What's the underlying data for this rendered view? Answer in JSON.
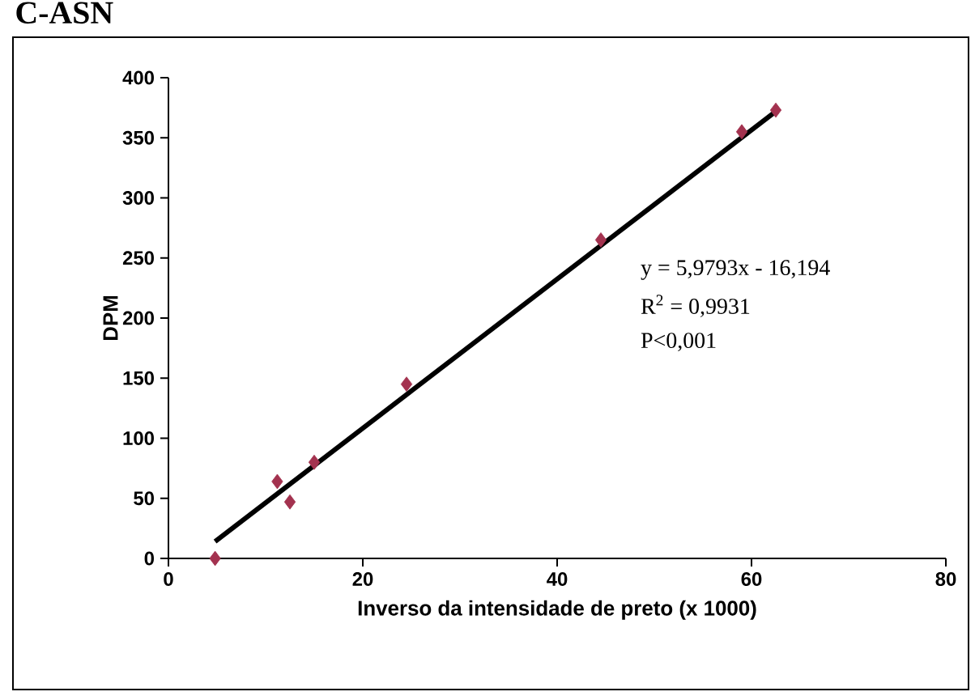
{
  "chart_data": {
    "type": "scatter",
    "title": "C-ASN",
    "xlabel": "Inverso da intensidade de preto (x 1000)",
    "ylabel": "DPM",
    "series": [
      {
        "color": "#a3324f",
        "marker": "diamond",
        "x": [
          4.8,
          11.2,
          12.5,
          15,
          24.5,
          44.5,
          59,
          62.5
        ],
        "values": [
          0,
          64,
          47,
          80,
          145,
          265,
          355,
          373
        ]
      },
      {
        "type": "line",
        "color": "#000000",
        "x": [
          4.8,
          62.5
        ],
        "values": [
          14,
          372
        ]
      }
    ],
    "xlim": [
      0,
      80
    ],
    "ylim": [
      0,
      400
    ],
    "xticks": [
      0,
      20,
      40,
      60,
      80
    ],
    "yticks": [
      0,
      50,
      100,
      150,
      200,
      250,
      300,
      350,
      400
    ],
    "grid": false,
    "annotations": [
      "y = 5,9793x - 16,194",
      "R$^{2}$ = 0,9931",
      "P<0,001"
    ]
  }
}
